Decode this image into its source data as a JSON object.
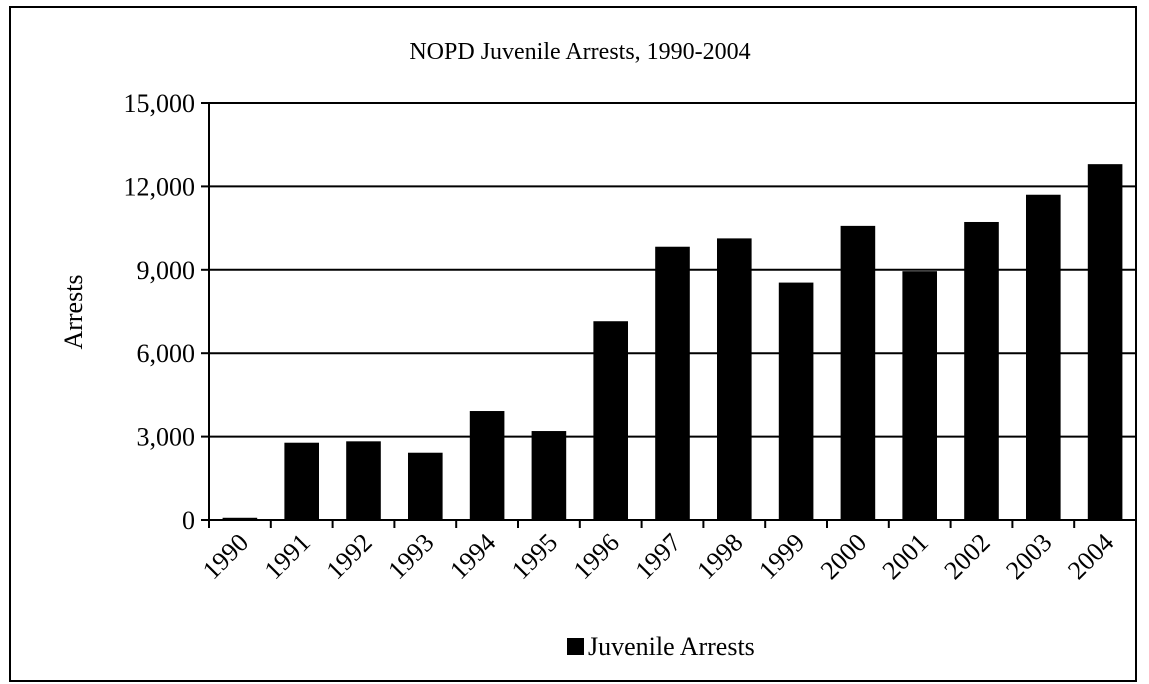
{
  "chart_data": {
    "type": "bar",
    "title": "NOPD Juvenile Arrests, 1990-2004",
    "xlabel": "",
    "ylabel": "Arrests",
    "categories": [
      "1990",
      "1991",
      "1992",
      "1993",
      "1994",
      "1995",
      "1996",
      "1997",
      "1998",
      "1999",
      "2000",
      "2001",
      "2002",
      "2003",
      "2004"
    ],
    "series": [
      {
        "name": "Juvenile Arrests",
        "values": [
          80,
          2780,
          2830,
          2420,
          3920,
          3200,
          7150,
          9830,
          10130,
          8540,
          10580,
          8950,
          10720,
          11700,
          12800
        ],
        "color": "#000000"
      }
    ],
    "ylim": [
      0,
      15000
    ],
    "yticks": [
      0,
      3000,
      6000,
      9000,
      12000,
      15000
    ],
    "ytick_labels": [
      "0",
      "3,000",
      "6,000",
      "9,000",
      "12,000",
      "15,000"
    ],
    "grid": true,
    "legend_position": "bottom"
  }
}
